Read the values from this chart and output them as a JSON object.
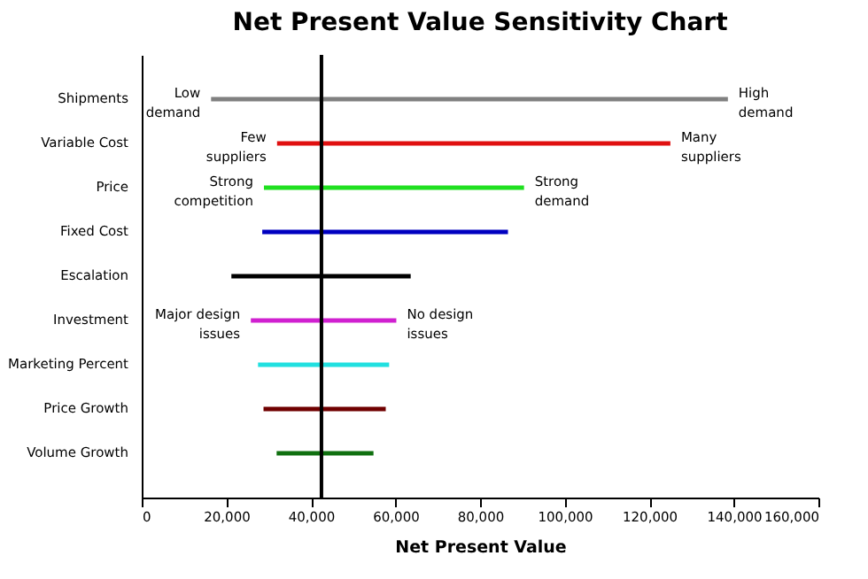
{
  "chart_data": {
    "type": "bar",
    "orientation": "horizontal",
    "title": "Net Present Value Sensitivity Chart",
    "xlabel": "Net Present Value",
    "categories": [
      "Shipments",
      "Variable Cost",
      "Price",
      "Fixed Cost",
      "Escalation",
      "Investment",
      "Marketing Percent",
      "Price Growth",
      "Volume Growth"
    ],
    "base": [
      16400,
      32000,
      28900,
      28500,
      21200,
      25800,
      27500,
      28800,
      31900
    ],
    "values": [
      122200,
      93000,
      61500,
      58100,
      42400,
      34400,
      31000,
      28900,
      22900
    ],
    "colors": [
      "#808080",
      "#e01010",
      "#20e020",
      "#0000c0",
      "#000000",
      "#d020d0",
      "#20e0e0",
      "#700000",
      "#107010"
    ],
    "xlim": [
      0,
      160000
    ],
    "xticks": [
      0,
      {
        "value": 20000,
        "label": "20,000"
      },
      {
        "value": 40000,
        "label": "40,000"
      },
      {
        "value": 60000,
        "label": "60,000"
      },
      {
        "value": 80000,
        "label": "80,000"
      },
      {
        "value": 100000,
        "label": "100,000"
      },
      {
        "value": 120000,
        "label": "120,000"
      },
      {
        "value": 140000,
        "label": "140,000"
      },
      {
        "value": 160000,
        "label": "160,000"
      }
    ],
    "ref_lines": [
      {
        "axis": "x",
        "value": 42500,
        "color": "#000000"
      }
    ],
    "annotations": [
      {
        "text": "Low\ndemand",
        "x": 16400,
        "y": "Shipments"
      },
      {
        "text": "High\ndemand",
        "x": 138600,
        "y": "Shipments"
      },
      {
        "text": "Few\nsuppliers",
        "x": 32000,
        "y": "Variable Cost"
      },
      {
        "text": "Many\nsuppliers",
        "x": 125000,
        "y": "Variable Cost"
      },
      {
        "text": "Strong\ncompetition",
        "x": 28900,
        "y": "Price"
      },
      {
        "text": "Strong\ndemand",
        "x": 90400,
        "y": "Price"
      },
      {
        "text": "Major design\nissues",
        "x": 25800,
        "y": "Investment"
      },
      {
        "text": "No design\nissues",
        "x": 60200,
        "y": "Investment"
      }
    ],
    "grid": false,
    "legend": false
  }
}
